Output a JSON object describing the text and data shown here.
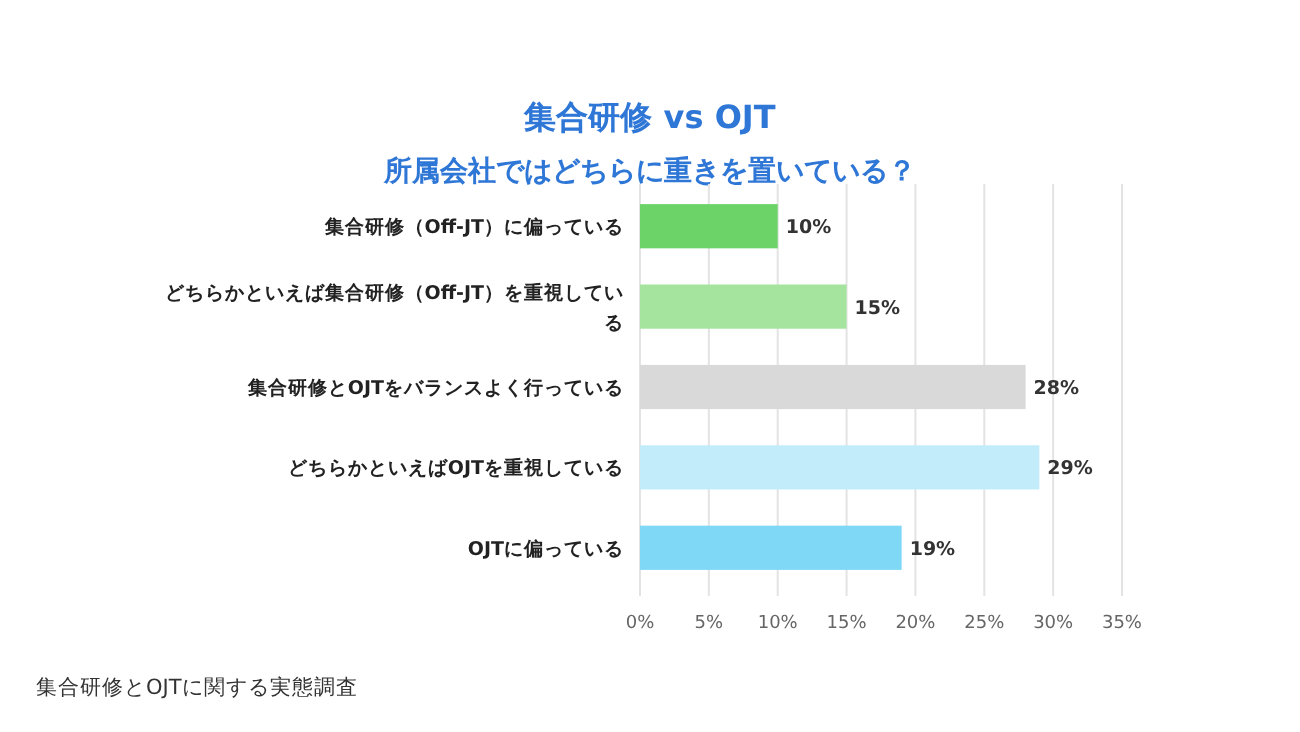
{
  "chart_data": {
    "type": "bar",
    "orientation": "horizontal",
    "title": "集合研修 vs OJT",
    "subtitle": "所属会社ではどちらに重きを置いている？",
    "categories": [
      "集合研修（Off-JT）に偏っている",
      "どちらかといえば集合研修（Off-JT）を重視している",
      "集合研修とOJTをバランスよく行っている",
      "どちらかといえばOJTを重視している",
      "OJTに偏っている"
    ],
    "values": [
      10,
      15,
      28,
      29,
      19
    ],
    "value_labels": [
      "10%",
      "15%",
      "28%",
      "29%",
      "19%"
    ],
    "colors": [
      "#6bd367",
      "#a5e49e",
      "#d9d9d9",
      "#c3ecfb",
      "#7fd8f6"
    ],
    "xlim": [
      0,
      35
    ],
    "xticks": [
      {
        "value": 0,
        "label": "0%"
      },
      {
        "value": 5,
        "label": "5%"
      },
      {
        "value": 10,
        "label": "10%"
      },
      {
        "value": 15,
        "label": "15%"
      },
      {
        "value": 20,
        "label": "20%"
      },
      {
        "value": 25,
        "label": "25%"
      },
      {
        "value": 30,
        "label": "30%"
      },
      {
        "value": 35,
        "label": "35%"
      }
    ],
    "grid": "x",
    "annotations": [
      "集合研修とOJTに関する実態調査"
    ]
  }
}
